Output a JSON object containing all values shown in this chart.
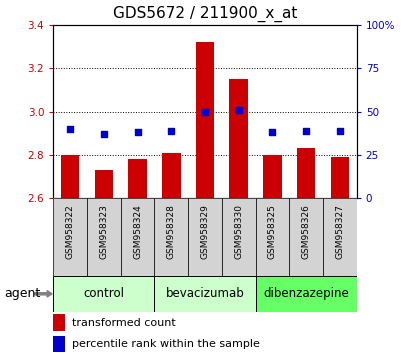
{
  "title": "GDS5672 / 211900_x_at",
  "samples": [
    "GSM958322",
    "GSM958323",
    "GSM958324",
    "GSM958328",
    "GSM958329",
    "GSM958330",
    "GSM958325",
    "GSM958326",
    "GSM958327"
  ],
  "bar_values": [
    2.8,
    2.73,
    2.78,
    2.81,
    3.32,
    3.15,
    2.8,
    2.83,
    2.79
  ],
  "percentile_values": [
    40,
    37,
    38,
    39,
    50,
    51,
    38,
    39,
    39
  ],
  "bar_color": "#cc0000",
  "dot_color": "#0000cc",
  "ylim_left": [
    2.6,
    3.4
  ],
  "ylim_right": [
    0,
    100
  ],
  "yticks_left": [
    2.6,
    2.8,
    3.0,
    3.2,
    3.4
  ],
  "yticks_right": [
    0,
    25,
    50,
    75,
    100
  ],
  "ytick_labels_right": [
    "0",
    "25",
    "50",
    "75",
    "100%"
  ],
  "groups": [
    {
      "label": "control",
      "start": 0,
      "end": 2,
      "color": "#ccffcc"
    },
    {
      "label": "bevacizumab",
      "start": 3,
      "end": 5,
      "color": "#ccffcc"
    },
    {
      "label": "dibenzazepine",
      "start": 6,
      "end": 8,
      "color": "#66ff66"
    }
  ],
  "xlabel": "agent",
  "legend_bar_label": "transformed count",
  "legend_dot_label": "percentile rank within the sample",
  "bar_width": 0.55,
  "bar_bottom": 2.6,
  "tick_color_left": "#cc0000",
  "tick_color_right": "#0000cc",
  "title_fontsize": 11,
  "tick_fontsize": 7.5,
  "sample_fontsize": 6.5,
  "group_fontsize": 8.5,
  "legend_fontsize": 8
}
